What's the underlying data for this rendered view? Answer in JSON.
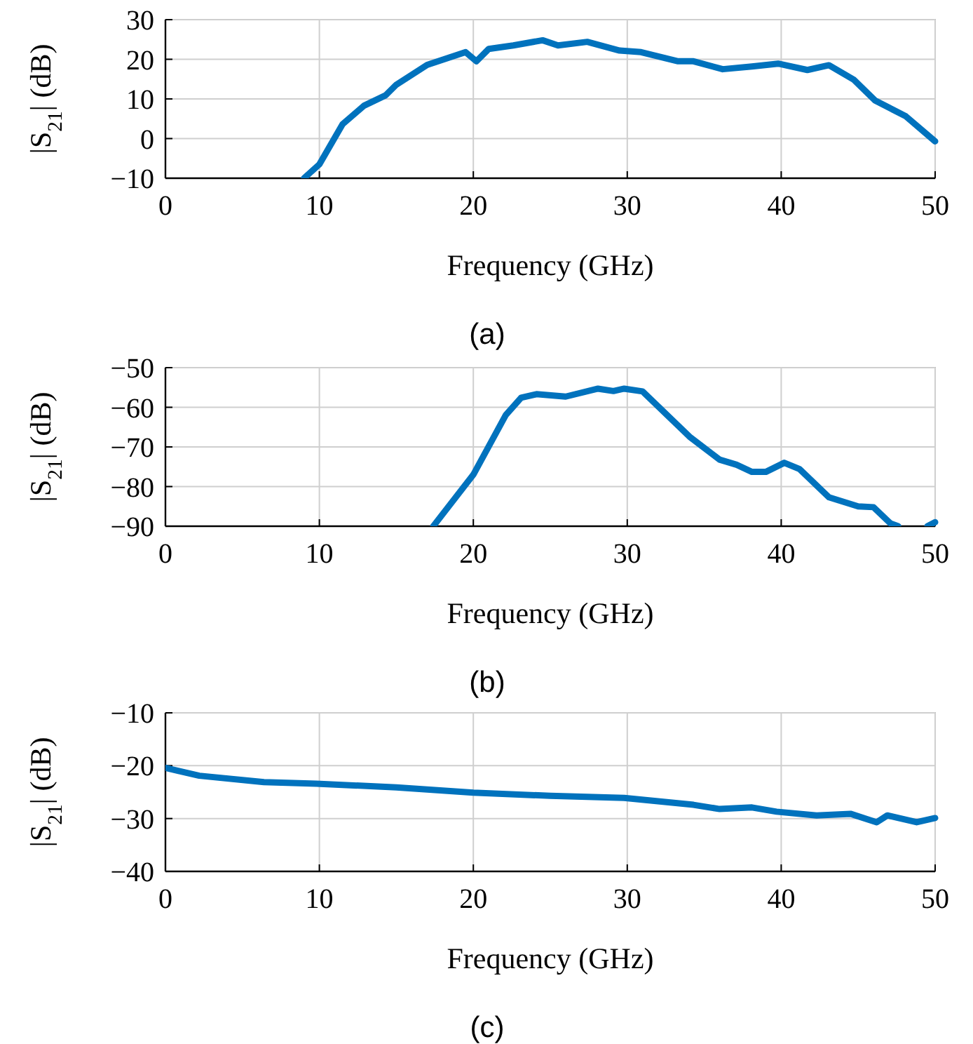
{
  "chart_data": [
    {
      "type": "line",
      "xlabel": "Frequency (GHz)",
      "ylabel": "|S$_{21}$| (dB)",
      "annotations": [
        "(a)"
      ],
      "xlim": [
        0,
        50
      ],
      "xticks": [
        0,
        10,
        20,
        30,
        40,
        50
      ],
      "ylim": [
        -10,
        30
      ],
      "yticks": [
        -10,
        0,
        10,
        20,
        30
      ],
      "grid": true,
      "marker": "none",
      "line_style": "solid",
      "series": [
        {
          "color": "#0072bd",
          "x": [
            9.0,
            10,
            11.5,
            12.9,
            14.3,
            15,
            17,
            19.5,
            20.2,
            21,
            22.6,
            24.5,
            25.5,
            27.4,
            29.5,
            30.9,
            33.3,
            34.3,
            36.2,
            38.1,
            39.8,
            41.7,
            43.1,
            44.7,
            46.1,
            47.1,
            48.1,
            50
          ],
          "values": [
            -10,
            -6.5,
            3.6,
            8.3,
            10.9,
            13.6,
            18.6,
            21.8,
            19.5,
            22.6,
            23.5,
            24.8,
            23.5,
            24.4,
            22.2,
            21.8,
            19.5,
            19.5,
            17.5,
            18.2,
            18.9,
            17.3,
            18.5,
            14.9,
            9.6,
            7.6,
            5.6,
            -0.7
          ]
        }
      ]
    },
    {
      "type": "line",
      "xlabel": "Frequency (GHz)",
      "ylabel": "|S$_{21}$| (dB)",
      "annotations": [
        "(b)"
      ],
      "xlim": [
        0,
        50
      ],
      "xticks": [
        0,
        10,
        20,
        30,
        40,
        50
      ],
      "ylim": [
        -90,
        -50
      ],
      "yticks": [
        -90,
        -80,
        -70,
        -60,
        -50
      ],
      "grid": true,
      "marker": "none",
      "line_style": "solid",
      "series": [
        {
          "color": "#0072bd",
          "x": [
            17.4,
            20,
            22.1,
            23.1,
            24.1,
            26,
            28.1,
            29.1,
            29.8,
            31,
            34.1,
            36,
            37.1,
            38.1,
            39,
            40.2,
            41.2,
            43.1,
            45,
            46,
            47.1,
            47.6,
            48.5,
            49.5,
            50
          ],
          "values": [
            -90,
            -77,
            -62,
            -57.6,
            -56.7,
            -57.3,
            -55.3,
            -55.9,
            -55.3,
            -56,
            -67.6,
            -73.2,
            -74.5,
            -76.3,
            -76.3,
            -74,
            -75.6,
            -82.7,
            -85,
            -85.2,
            -89.3,
            -90,
            null,
            -90,
            -89
          ]
        }
      ]
    },
    {
      "type": "line",
      "xlabel": "Frequency (GHz)",
      "ylabel": "|S$_{21}$| (dB)",
      "annotations": [
        "(c)"
      ],
      "xlim": [
        0,
        50
      ],
      "xticks": [
        0,
        10,
        20,
        30,
        40,
        50
      ],
      "ylim": [
        -40,
        -10
      ],
      "yticks": [
        -40,
        -30,
        -20,
        -10
      ],
      "grid": true,
      "marker": "none",
      "line_style": "solid",
      "series": [
        {
          "color": "#0072bd",
          "x": [
            0,
            2.2,
            6.4,
            9.8,
            15,
            20,
            25,
            29.8,
            34.3,
            36,
            38.1,
            39.7,
            42.3,
            44.5,
            46.2,
            46.9,
            48.8,
            50
          ],
          "values": [
            -20.4,
            -21.9,
            -23.1,
            -23.4,
            -24.1,
            -25.1,
            -25.7,
            -26.1,
            -27.4,
            -28.2,
            -27.9,
            -28.7,
            -29.4,
            -29.1,
            -30.7,
            -29.4,
            -30.7,
            -29.9
          ]
        }
      ]
    }
  ]
}
